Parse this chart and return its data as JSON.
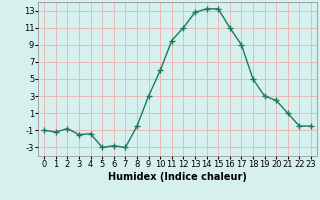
{
  "x": [
    0,
    1,
    2,
    3,
    4,
    5,
    6,
    7,
    8,
    9,
    10,
    11,
    12,
    13,
    14,
    15,
    16,
    17,
    18,
    19,
    20,
    21,
    22,
    23
  ],
  "y": [
    -1,
    -1.2,
    -0.8,
    -1.5,
    -1.4,
    -3.0,
    -2.8,
    -3.0,
    -0.5,
    3.0,
    6.0,
    9.5,
    11.0,
    12.8,
    13.2,
    13.2,
    11.0,
    9.0,
    5.0,
    3.0,
    2.5,
    1.0,
    -0.5,
    -0.5
  ],
  "line_color": "#1a7a5e",
  "marker": "+",
  "marker_size": 4,
  "marker_linewidth": 1.0,
  "bg_color": "#d6f0ee",
  "grid_color": "#e8b8b8",
  "xlabel": "Humidex (Indice chaleur)",
  "ylim": [
    -4,
    14
  ],
  "xlim": [
    -0.5,
    23.5
  ],
  "yticks": [
    -3,
    -1,
    1,
    3,
    5,
    7,
    9,
    11,
    13
  ],
  "ytick_labels": [
    "-3",
    "-1",
    "1",
    "3",
    "5",
    "7",
    "9",
    "11",
    "13"
  ],
  "xticks": [
    0,
    1,
    2,
    3,
    4,
    5,
    6,
    7,
    8,
    9,
    10,
    11,
    12,
    13,
    14,
    15,
    16,
    17,
    18,
    19,
    20,
    21,
    22,
    23
  ],
  "line_width": 1.0,
  "spine_color": "#888888",
  "tick_fontsize": 6,
  "xlabel_fontsize": 7
}
